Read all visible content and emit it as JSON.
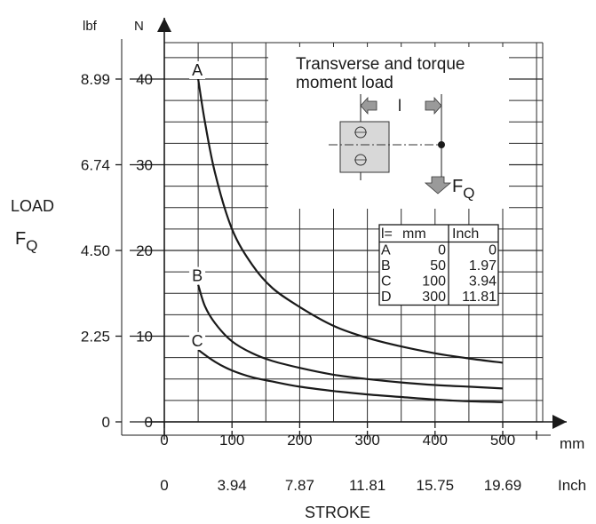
{
  "chart_data": {
    "type": "line",
    "y_primary": {
      "unit": "N",
      "ticks": [
        0,
        10,
        20,
        30,
        40
      ],
      "range": [
        0,
        44
      ]
    },
    "y_secondary": {
      "unit": "lbf",
      "ticks": [
        "0",
        "2.25",
        "4.50",
        "6.74",
        "8.99"
      ]
    },
    "x_primary": {
      "unit": "mm",
      "ticks": [
        0,
        100,
        200,
        300,
        400,
        500
      ],
      "range": [
        0,
        530
      ]
    },
    "x_secondary": {
      "unit": "Inch",
      "ticks": [
        "0",
        "3.94",
        "7.87",
        "11.81",
        "15.75",
        "19.69"
      ]
    },
    "ylabel": "LOAD",
    "ylabel_symbol": "F",
    "ylabel_sub": "Q",
    "xlabel": "STROKE",
    "grid": true,
    "series": [
      {
        "name": "A",
        "x": [
          50,
          60,
          75,
          100,
          130,
          160,
          200,
          250,
          300,
          350,
          400,
          450,
          500
        ],
        "values": [
          40,
          35,
          29,
          22.5,
          18.3,
          15.6,
          13.4,
          11.2,
          9.8,
          8.8,
          8.0,
          7.4,
          6.9
        ]
      },
      {
        "name": "B",
        "x": [
          50,
          60,
          75,
          100,
          130,
          160,
          200,
          250,
          300,
          350,
          400,
          450,
          500
        ],
        "values": [
          16,
          13.5,
          11.5,
          9.4,
          8.0,
          7.1,
          6.3,
          5.5,
          5.0,
          4.6,
          4.3,
          4.1,
          3.9
        ]
      },
      {
        "name": "C",
        "x": [
          50,
          75,
          100,
          130,
          160,
          200,
          250,
          300,
          350,
          400,
          450,
          500
        ],
        "values": [
          8.4,
          7.0,
          6.0,
          5.2,
          4.7,
          4.1,
          3.6,
          3.2,
          2.9,
          2.6,
          2.4,
          2.3
        ]
      }
    ],
    "inset": {
      "title_line1": "Transverse and torque",
      "title_line2": "moment load",
      "lever_label": "l",
      "force_symbol": "F",
      "force_sub": "Q"
    },
    "legend_table": {
      "header": [
        "l=",
        "mm",
        "Inch"
      ],
      "rows": [
        [
          "A",
          "0",
          "0"
        ],
        [
          "B",
          "50",
          "1.97"
        ],
        [
          "C",
          "100",
          "3.94"
        ],
        [
          "D",
          "300",
          "11.81"
        ]
      ]
    }
  }
}
